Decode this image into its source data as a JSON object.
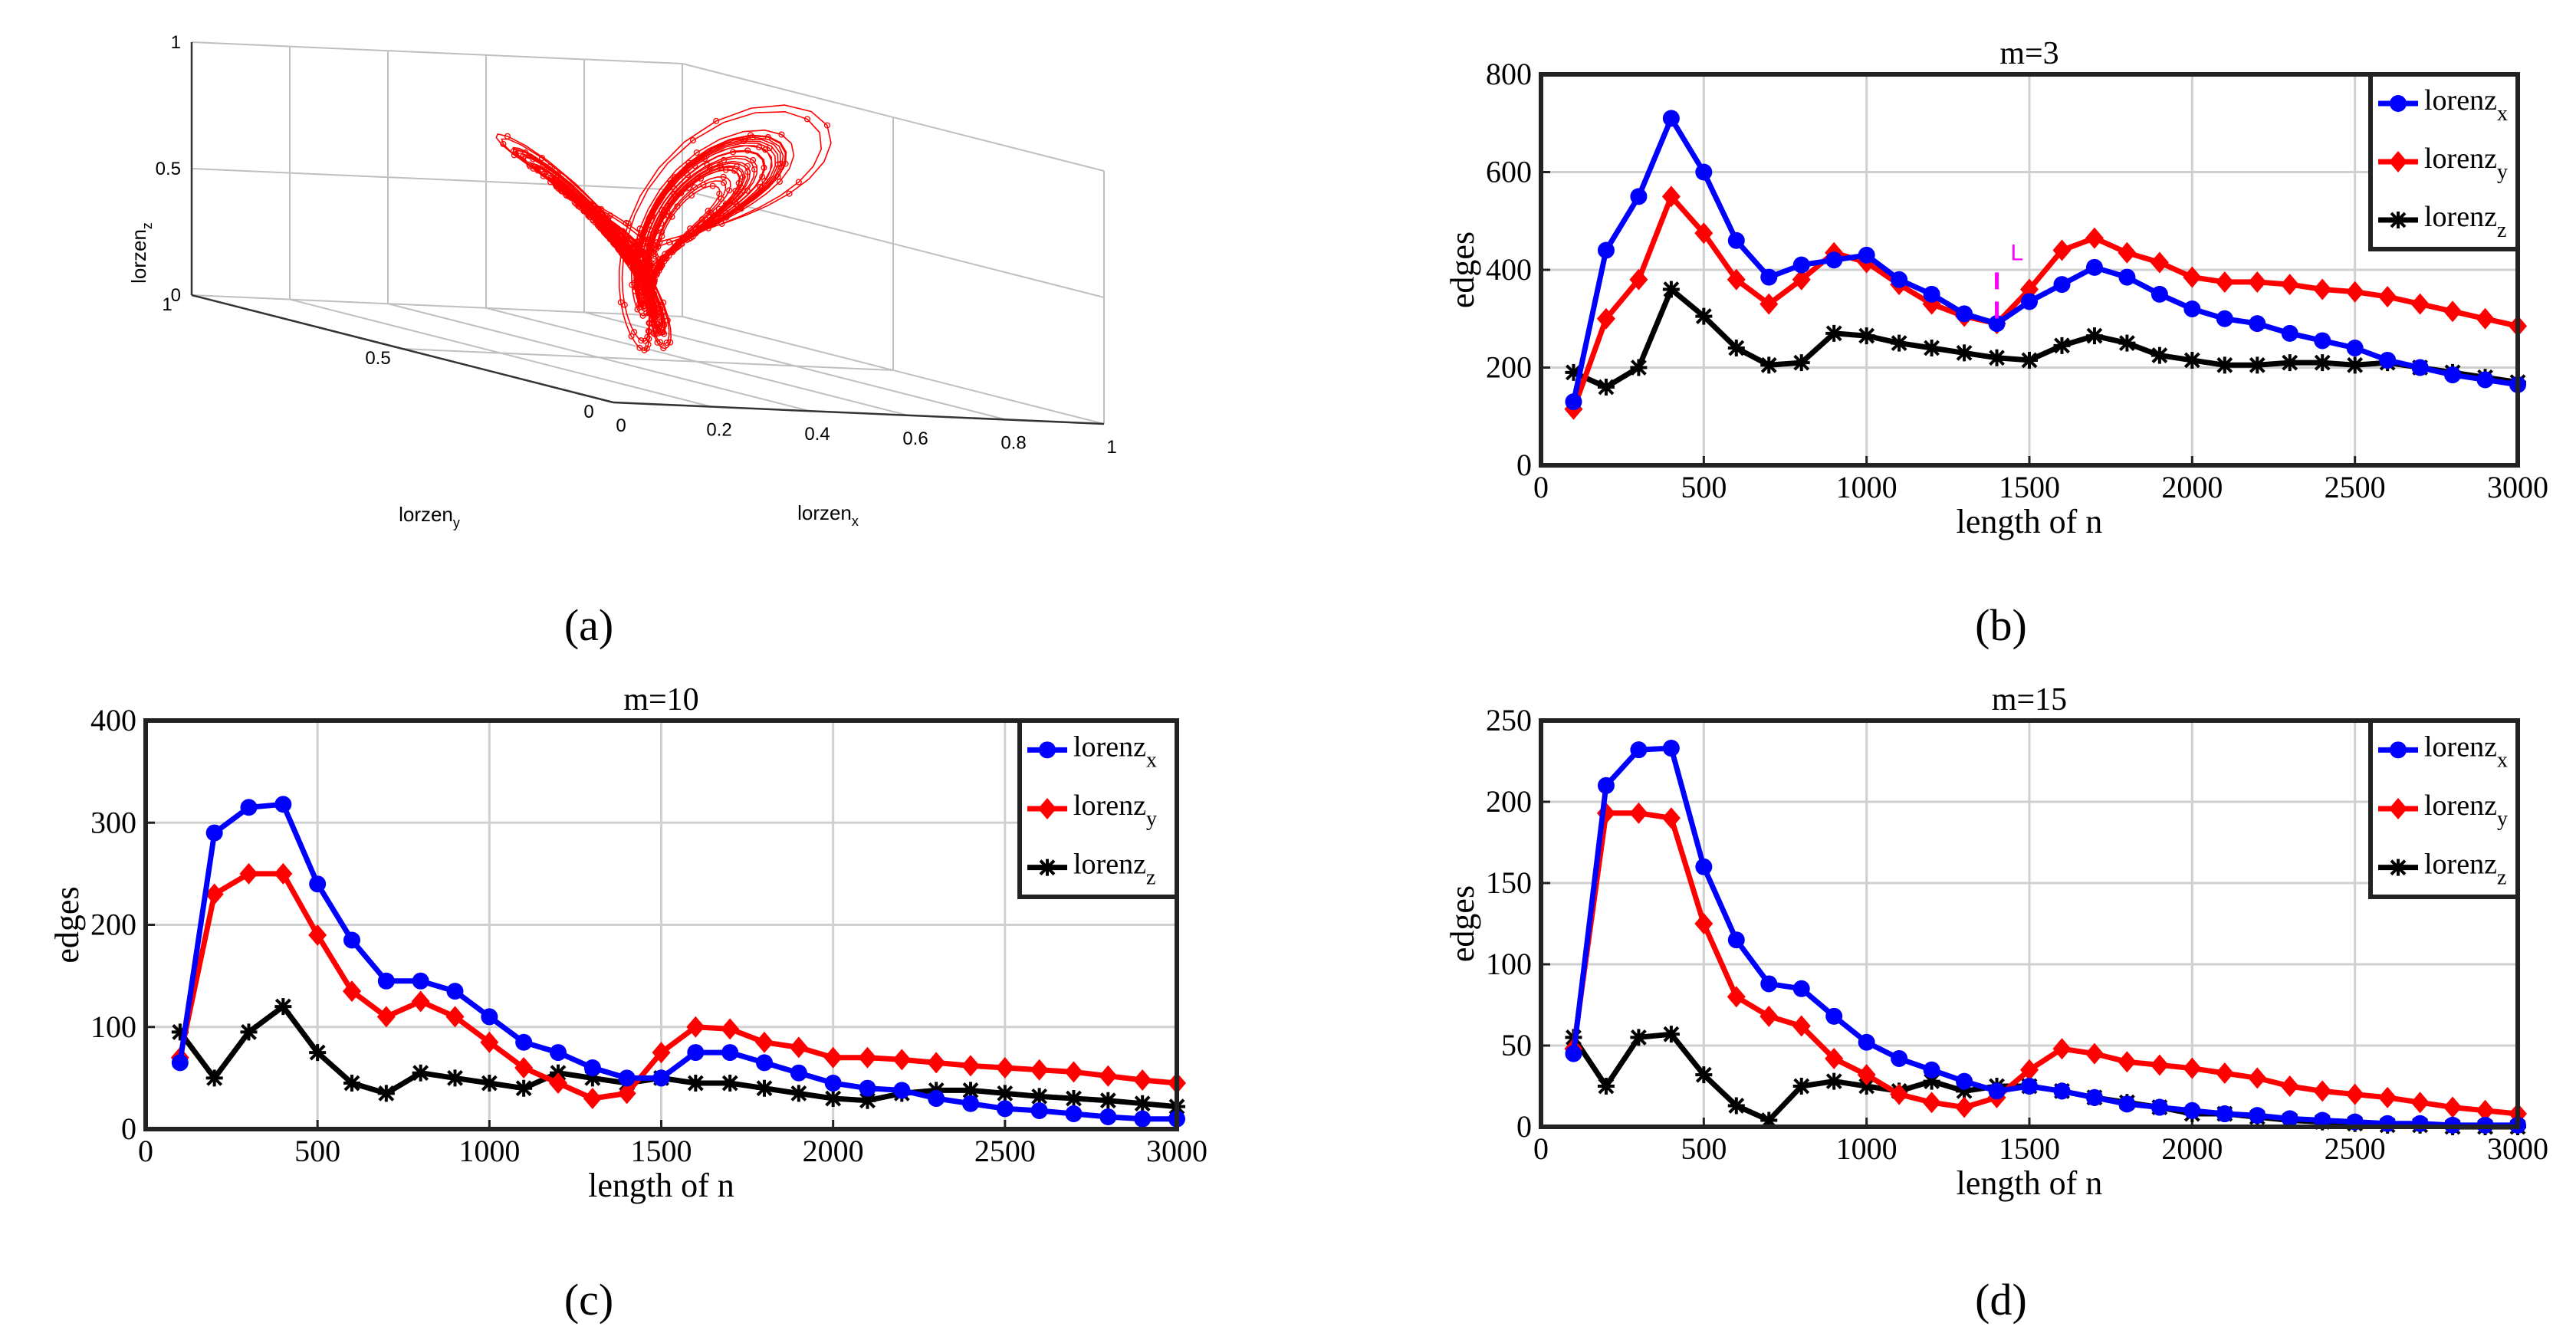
{
  "panel_labels": [
    "(a)",
    "(b)",
    "(c)",
    "(d)"
  ],
  "chart_data": [
    {
      "type": "scatter3d",
      "panel": "(a)",
      "xlabel": "lorzen_x",
      "ylabel": "lorzen_y",
      "zlabel": "lorzen_z",
      "xticks": [
        "0",
        "0.2",
        "0.4",
        "0.6",
        "0.8",
        "1"
      ],
      "yticks": [
        "0",
        "0.5",
        "1"
      ],
      "zticks": [
        "0",
        "0.5",
        "1"
      ],
      "xlim": [
        0,
        1
      ],
      "ylim": [
        0,
        1
      ],
      "zlim": [
        0,
        1
      ],
      "series_color": "#ff0000",
      "description": "normalized Lorenz attractor trajectory"
    },
    {
      "type": "line",
      "panel": "(b)",
      "title": "m=3",
      "xlabel": "length of n",
      "ylabel": "edges",
      "xlim": [
        0,
        3000
      ],
      "ylim": [
        0,
        800
      ],
      "xticks": [
        0,
        500,
        1000,
        1500,
        2000,
        2500,
        3000
      ],
      "yticks": [
        0,
        200,
        400,
        600,
        800
      ],
      "x": [
        100,
        200,
        300,
        400,
        500,
        600,
        700,
        800,
        900,
        1000,
        1100,
        1200,
        1300,
        1400,
        1500,
        1600,
        1700,
        1800,
        1900,
        2000,
        2100,
        2200,
        2300,
        2400,
        2500,
        2600,
        2700,
        2800,
        2900,
        3000
      ],
      "series": [
        {
          "name": "lorenz",
          "sub": "x",
          "color": "#0000ff",
          "marker": "circle",
          "values": [
            130,
            440,
            550,
            710,
            600,
            460,
            385,
            410,
            420,
            430,
            380,
            350,
            310,
            290,
            335,
            370,
            405,
            385,
            350,
            320,
            300,
            290,
            270,
            255,
            240,
            215,
            200,
            185,
            175,
            165
          ]
        },
        {
          "name": "lorenz",
          "sub": "y",
          "color": "#ff0000",
          "marker": "diamond",
          "values": [
            115,
            300,
            380,
            550,
            475,
            380,
            330,
            380,
            435,
            415,
            370,
            330,
            305,
            290,
            360,
            440,
            465,
            435,
            415,
            385,
            375,
            375,
            370,
            360,
            355,
            345,
            330,
            315,
            300,
            285
          ]
        },
        {
          "name": "lorenz",
          "sub": "z",
          "color": "#000000",
          "marker": "star",
          "values": [
            190,
            160,
            200,
            360,
            305,
            240,
            205,
            210,
            270,
            265,
            250,
            240,
            230,
            220,
            215,
            245,
            265,
            250,
            225,
            215,
            205,
            205,
            210,
            210,
            205,
            210,
            200,
            190,
            180,
            170
          ]
        }
      ],
      "annotation": {
        "label": "L",
        "x": 1400,
        "y": 285,
        "color": "#ff00ff"
      }
    },
    {
      "type": "line",
      "panel": "(c)",
      "title": "m=10",
      "xlabel": "length of n",
      "ylabel": "edges",
      "xlim": [
        0,
        3000
      ],
      "ylim": [
        0,
        400
      ],
      "xticks": [
        0,
        500,
        1000,
        1500,
        2000,
        2500,
        3000
      ],
      "yticks": [
        0,
        100,
        200,
        300,
        400
      ],
      "x": [
        100,
        200,
        300,
        400,
        500,
        600,
        700,
        800,
        900,
        1000,
        1100,
        1200,
        1300,
        1400,
        1500,
        1600,
        1700,
        1800,
        1900,
        2000,
        2100,
        2200,
        2300,
        2400,
        2500,
        2600,
        2700,
        2800,
        2900,
        3000
      ],
      "series": [
        {
          "name": "lorenz",
          "sub": "x",
          "color": "#0000ff",
          "marker": "circle",
          "values": [
            65,
            290,
            315,
            318,
            240,
            185,
            145,
            145,
            135,
            110,
            85,
            75,
            60,
            50,
            50,
            75,
            75,
            65,
            55,
            45,
            40,
            38,
            30,
            25,
            20,
            18,
            15,
            12,
            10,
            10
          ]
        },
        {
          "name": "lorenz",
          "sub": "y",
          "color": "#ff0000",
          "marker": "diamond",
          "values": [
            70,
            230,
            250,
            250,
            190,
            135,
            110,
            125,
            110,
            85,
            60,
            45,
            30,
            35,
            75,
            100,
            98,
            85,
            80,
            70,
            70,
            68,
            65,
            62,
            60,
            58,
            56,
            52,
            48,
            45
          ]
        },
        {
          "name": "lorenz",
          "sub": "z",
          "color": "#000000",
          "marker": "star",
          "values": [
            95,
            50,
            95,
            120,
            75,
            45,
            35,
            55,
            50,
            45,
            40,
            55,
            50,
            45,
            50,
            45,
            45,
            40,
            35,
            30,
            28,
            35,
            38,
            38,
            35,
            32,
            30,
            28,
            25,
            22
          ]
        }
      ]
    },
    {
      "type": "line",
      "panel": "(d)",
      "title": "m=15",
      "xlabel": "length of n",
      "ylabel": "edges",
      "xlim": [
        0,
        3000
      ],
      "ylim": [
        0,
        250
      ],
      "xticks": [
        0,
        500,
        1000,
        1500,
        2000,
        2500,
        3000
      ],
      "yticks": [
        0,
        50,
        100,
        150,
        200,
        250
      ],
      "x": [
        100,
        200,
        300,
        400,
        500,
        600,
        700,
        800,
        900,
        1000,
        1100,
        1200,
        1300,
        1400,
        1500,
        1600,
        1700,
        1800,
        1900,
        2000,
        2100,
        2200,
        2300,
        2400,
        2500,
        2600,
        2700,
        2800,
        2900,
        3000
      ],
      "series": [
        {
          "name": "lorenz",
          "sub": "x",
          "color": "#0000ff",
          "marker": "circle",
          "values": [
            45,
            210,
            232,
            233,
            160,
            115,
            88,
            85,
            68,
            52,
            42,
            35,
            28,
            22,
            25,
            22,
            18,
            14,
            12,
            10,
            8,
            7,
            5,
            4,
            3,
            2,
            2,
            1,
            1,
            1
          ]
        },
        {
          "name": "lorenz",
          "sub": "y",
          "color": "#ff0000",
          "marker": "diamond",
          "values": [
            48,
            193,
            193,
            190,
            125,
            80,
            68,
            62,
            42,
            32,
            20,
            15,
            12,
            18,
            35,
            48,
            45,
            40,
            38,
            36,
            33,
            30,
            25,
            22,
            20,
            18,
            15,
            12,
            10,
            8
          ]
        },
        {
          "name": "lorenz",
          "sub": "z",
          "color": "#000000",
          "marker": "star",
          "values": [
            55,
            25,
            55,
            57,
            32,
            13,
            4,
            25,
            28,
            25,
            22,
            28,
            22,
            25,
            25,
            22,
            18,
            15,
            12,
            8,
            8,
            6,
            4,
            3,
            2,
            1,
            1,
            0,
            0,
            0
          ]
        }
      ]
    }
  ]
}
